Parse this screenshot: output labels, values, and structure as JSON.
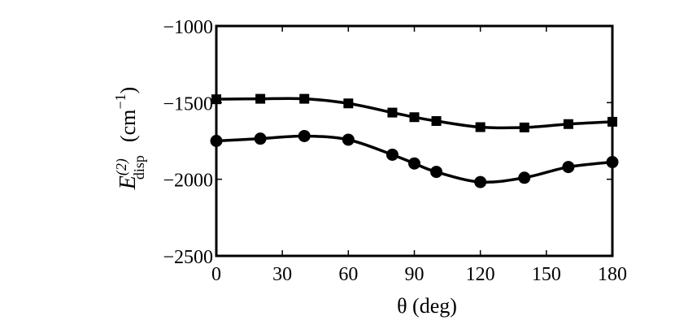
{
  "chart_data": {
    "type": "line",
    "xlabel": "θ  (deg)",
    "ylabel": {
      "symbol": "E",
      "superscript": "(2)",
      "subscript": "disp",
      "units": "(cm",
      "units_exponent": "−1",
      "units_close": ")"
    },
    "xlim": [
      0,
      180
    ],
    "ylim": [
      -2500,
      -1000
    ],
    "x_ticks": [
      0,
      30,
      60,
      90,
      120,
      150,
      180
    ],
    "x_tick_labels": [
      "0",
      "30",
      "60",
      "90",
      "120",
      "150",
      "180"
    ],
    "y_ticks": [
      -1000,
      -1500,
      -2000,
      -2500
    ],
    "y_tick_labels": [
      "−1000",
      "−1500",
      "−2000",
      "−2500"
    ],
    "grid": false,
    "series": [
      {
        "marker": "square",
        "x": [
          0,
          20,
          40,
          60,
          80,
          90,
          100,
          120,
          140,
          160,
          180
        ],
        "y": [
          -1478,
          -1475,
          -1475,
          -1505,
          -1565,
          -1595,
          -1620,
          -1660,
          -1662,
          -1640,
          -1625
        ]
      },
      {
        "marker": "circle",
        "x": [
          0,
          20,
          40,
          60,
          80,
          90,
          100,
          120,
          140,
          160,
          180
        ],
        "y": [
          -1750,
          -1735,
          -1718,
          -1742,
          -1840,
          -1897,
          -1952,
          -2018,
          -1990,
          -1920,
          -1888
        ]
      }
    ]
  }
}
